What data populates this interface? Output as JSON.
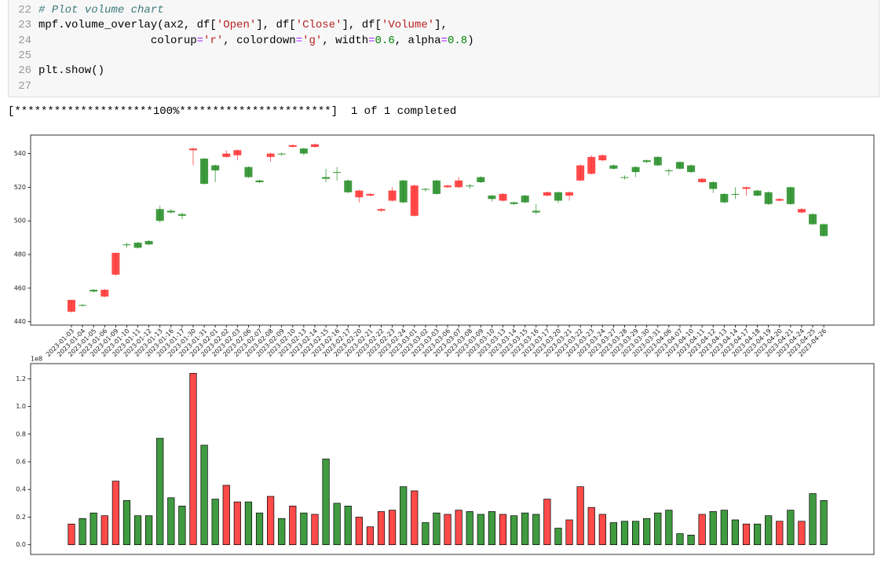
{
  "code": {
    "lines": [
      {
        "number": "22",
        "tokens": [
          {
            "text": "# Plot volume chart",
            "kind": "comment"
          }
        ]
      },
      {
        "number": "23",
        "tokens": [
          {
            "text": "mpf.volume_overlay(ax2, df[",
            "kind": "plain"
          },
          {
            "text": "'Open'",
            "kind": "string"
          },
          {
            "text": "], df[",
            "kind": "plain"
          },
          {
            "text": "'Close'",
            "kind": "string"
          },
          {
            "text": "], df[",
            "kind": "plain"
          },
          {
            "text": "'Volume'",
            "kind": "string"
          },
          {
            "text": "],",
            "kind": "plain"
          }
        ]
      },
      {
        "number": "24",
        "tokens": [
          {
            "text": "                 colorup",
            "kind": "plain"
          },
          {
            "text": "=",
            "kind": "op"
          },
          {
            "text": "'r'",
            "kind": "string"
          },
          {
            "text": ", colordown",
            "kind": "plain"
          },
          {
            "text": "=",
            "kind": "op"
          },
          {
            "text": "'g'",
            "kind": "string"
          },
          {
            "text": ", width",
            "kind": "plain"
          },
          {
            "text": "=",
            "kind": "op"
          },
          {
            "text": "0.6",
            "kind": "number"
          },
          {
            "text": ", alpha",
            "kind": "plain"
          },
          {
            "text": "=",
            "kind": "op"
          },
          {
            "text": "0.8",
            "kind": "number"
          },
          {
            "text": ")",
            "kind": "plain"
          }
        ]
      },
      {
        "number": "25",
        "tokens": []
      },
      {
        "number": "26",
        "tokens": [
          {
            "text": "plt.show()",
            "kind": "plain"
          }
        ]
      },
      {
        "number": "27",
        "tokens": []
      }
    ]
  },
  "output": {
    "text": "[*********************100%***********************]  1 of 1 completed"
  },
  "chart_data": [
    {
      "type": "candlestick",
      "categories": [
        "2023-01-03",
        "2023-01-04",
        "2023-01-05",
        "2023-01-06",
        "2023-01-09",
        "2023-01-10",
        "2023-01-11",
        "2023-01-12",
        "2023-01-13",
        "2023-01-16",
        "2023-01-17",
        "2023-01-30",
        "2023-01-31",
        "2023-02-01",
        "2023-02-02",
        "2023-02-03",
        "2023-02-06",
        "2023-02-07",
        "2023-02-08",
        "2023-02-09",
        "2023-02-10",
        "2023-02-13",
        "2023-02-14",
        "2023-02-15",
        "2023-02-16",
        "2023-02-17",
        "2023-02-20",
        "2023-02-21",
        "2023-02-22",
        "2023-02-23",
        "2023-02-24",
        "2023-03-01",
        "2023-03-02",
        "2023-03-03",
        "2023-03-06",
        "2023-03-07",
        "2023-03-08",
        "2023-03-09",
        "2023-03-10",
        "2023-03-13",
        "2023-03-14",
        "2023-03-15",
        "2023-03-16",
        "2023-03-17",
        "2023-03-20",
        "2023-03-21",
        "2023-03-22",
        "2023-03-23",
        "2023-03-24",
        "2023-03-27",
        "2023-03-28",
        "2023-03-29",
        "2023-03-30",
        "2023-03-31",
        "2023-04-06",
        "2023-04-07",
        "2023-04-10",
        "2023-04-11",
        "2023-04-12",
        "2023-04-13",
        "2023-04-14",
        "2023-04-17",
        "2023-04-18",
        "2023-04-19",
        "2023-04-20",
        "2023-04-21",
        "2023-04-24",
        "2023-04-25",
        "2023-04-26"
      ],
      "open": [
        446,
        450,
        459,
        455,
        468,
        486,
        487,
        488,
        507,
        506,
        504,
        542,
        537,
        533,
        538,
        539,
        532,
        524,
        538,
        540,
        544,
        543,
        544,
        526,
        529,
        524,
        514,
        515,
        506,
        512,
        524,
        503,
        519,
        524,
        520,
        520,
        521,
        526,
        515,
        512,
        511,
        515,
        506,
        515,
        517,
        515,
        524,
        528,
        536,
        533,
        526,
        532,
        536,
        538,
        530,
        535,
        533,
        523,
        523,
        516,
        516,
        519,
        518,
        517,
        512,
        520,
        505,
        504,
        498
      ],
      "high": [
        453,
        450.5,
        459.5,
        459.5,
        481,
        487,
        487.5,
        488.5,
        509,
        507,
        505,
        543.5,
        537.5,
        533.5,
        542,
        542.5,
        532.5,
        524.5,
        540.5,
        540.5,
        545.5,
        543.5,
        546,
        531,
        532,
        524.5,
        518.5,
        516.5,
        507.5,
        520,
        524.5,
        521.5,
        519.5,
        524.5,
        521.5,
        526,
        522,
        526.5,
        515.5,
        516.5,
        511.5,
        515.5,
        510,
        517.5,
        517.5,
        517.5,
        533.5,
        539,
        539.5,
        533.5,
        527,
        532.5,
        536.5,
        538.5,
        531,
        535.5,
        533.5,
        525.5,
        523.5,
        516.5,
        520,
        520.5,
        518.5,
        517.5,
        513.5,
        520.5,
        507.5,
        504.5,
        498.5
      ],
      "low": [
        445.5,
        449,
        457.5,
        454.5,
        467.5,
        484,
        483.5,
        485.5,
        499,
        504.5,
        501,
        533,
        521.5,
        523,
        537.5,
        536,
        525.5,
        522.5,
        535,
        538.5,
        543.5,
        539,
        543.5,
        523,
        524,
        516.5,
        511,
        514.5,
        505.5,
        511.5,
        510.5,
        502.5,
        517.5,
        515.5,
        519.5,
        519.5,
        519,
        522.5,
        511.5,
        511.5,
        509.5,
        510.5,
        504,
        514.5,
        510.5,
        512,
        523.5,
        527.5,
        535.5,
        530.5,
        524.5,
        526,
        534.5,
        532.5,
        527,
        530.5,
        528.5,
        522.5,
        516.5,
        510.5,
        513,
        515,
        514.5,
        509.5,
        511.5,
        509.5,
        504.5,
        497.5,
        490.5
      ],
      "close": [
        453,
        449.5,
        458,
        459,
        481,
        485.5,
        484,
        486,
        500,
        505,
        503,
        543,
        522,
        530,
        540,
        542,
        526,
        523,
        540,
        539.5,
        545,
        540,
        545.5,
        525,
        528.5,
        517,
        518,
        516,
        507,
        518,
        511,
        521,
        518.5,
        516,
        521,
        524,
        520.5,
        523,
        513,
        516,
        510,
        511,
        505,
        517,
        512,
        517,
        533,
        538,
        539,
        531,
        525.5,
        529,
        535,
        533,
        529.5,
        531,
        529,
        525,
        519,
        511,
        515.5,
        520,
        515,
        510,
        513,
        510,
        507,
        498,
        491
      ],
      "colorup": "#ff2a2a",
      "colordown": "#1f8a1f",
      "ylim": [
        438,
        551
      ],
      "yticks": [
        440,
        460,
        480,
        500,
        520,
        540
      ]
    },
    {
      "type": "bar",
      "offset_label": "1e8",
      "values": [
        0.15,
        0.19,
        0.23,
        0.21,
        0.46,
        0.32,
        0.21,
        0.21,
        0.77,
        0.34,
        0.28,
        1.24,
        0.72,
        0.33,
        0.43,
        0.31,
        0.31,
        0.23,
        0.35,
        0.19,
        0.28,
        0.23,
        0.22,
        0.62,
        0.3,
        0.28,
        0.2,
        0.13,
        0.24,
        0.25,
        0.42,
        0.39,
        0.16,
        0.23,
        0.22,
        0.25,
        0.24,
        0.22,
        0.24,
        0.22,
        0.21,
        0.23,
        0.22,
        0.33,
        0.12,
        0.18,
        0.42,
        0.27,
        0.22,
        0.16,
        0.17,
        0.17,
        0.19,
        0.23,
        0.25,
        0.08,
        0.07,
        0.22,
        0.24,
        0.25,
        0.18,
        0.15,
        0.15,
        0.21,
        0.17,
        0.25,
        0.17,
        0.37,
        0.32
      ],
      "ylim": [
        -0.07,
        1.31
      ],
      "yticks": [
        {
          "value": 0,
          "label": "0.0"
        },
        0.2,
        0.4,
        0.6,
        0.8,
        {
          "value": 1,
          "label": "1.0"
        },
        1.2
      ]
    }
  ]
}
